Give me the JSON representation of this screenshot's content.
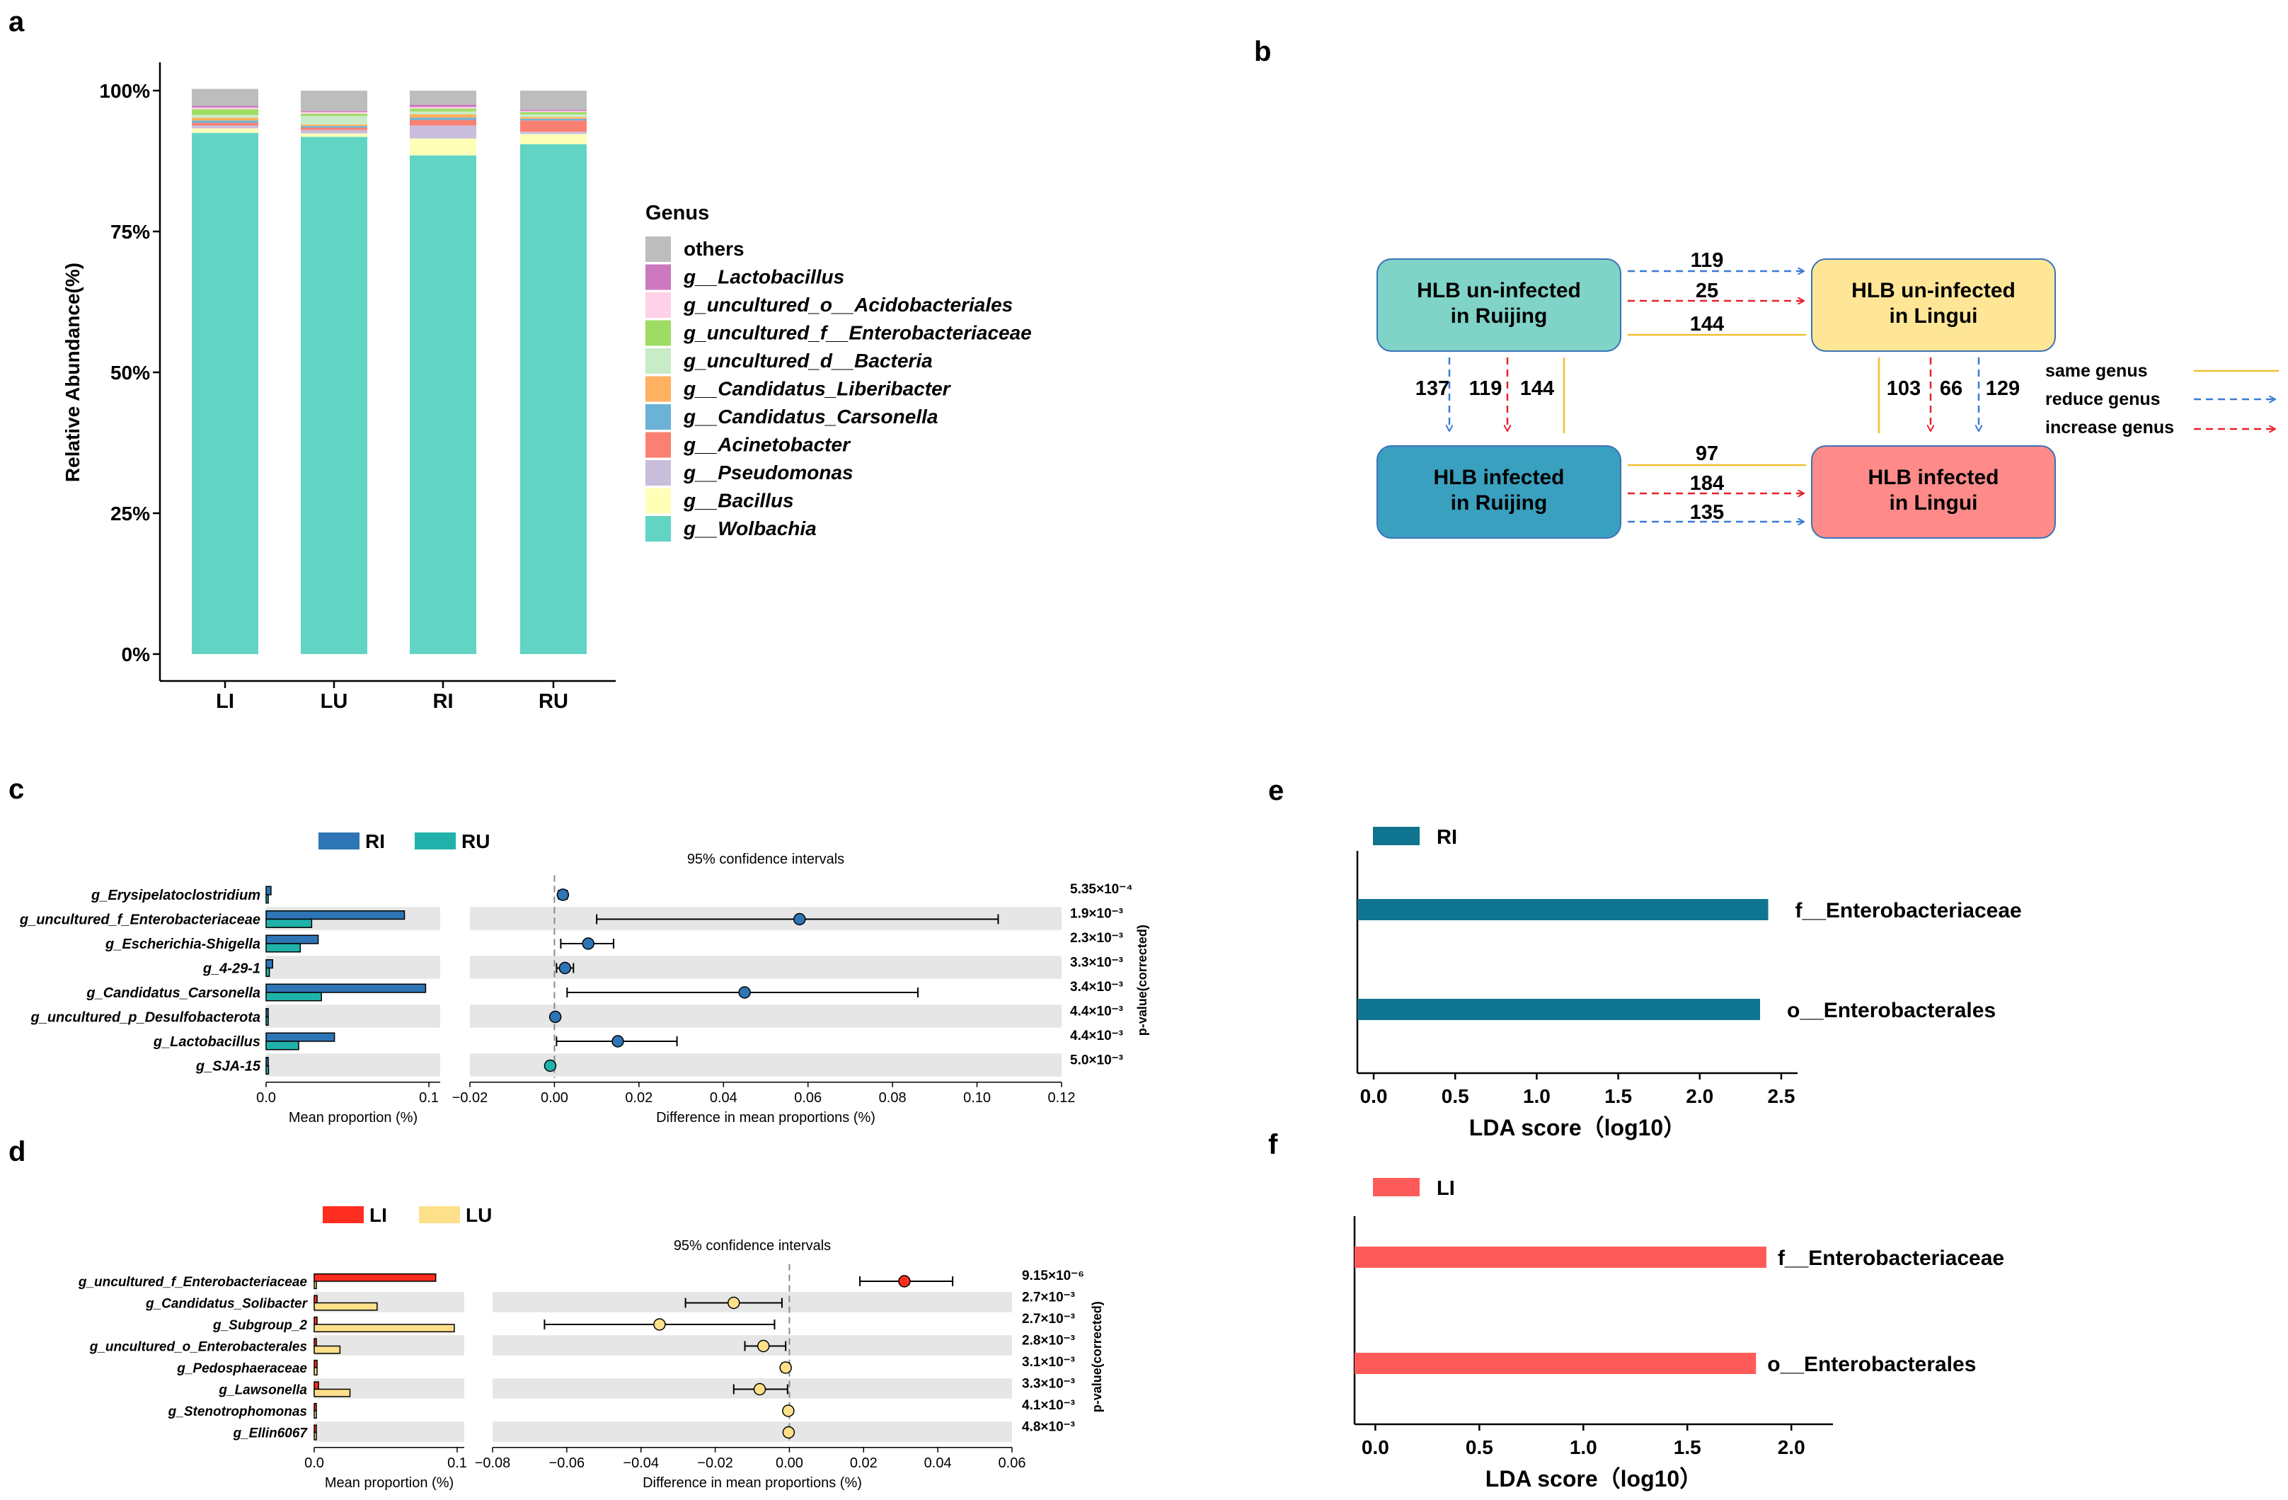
{
  "panel_labels": {
    "a": "a",
    "b": "b",
    "c": "c",
    "d": "d",
    "e": "e",
    "f": "f"
  },
  "colors": {
    "others": "#bdbdbd",
    "lactobacillus": "#cc79c0",
    "acido": "#ffd0e8",
    "entero": "#9edc64",
    "bacteria": "#c8ecc8",
    "liberibacter": "#ffb060",
    "carsonella": "#6bb2d6",
    "acinetobacter": "#fa8072",
    "pseudomonas": "#c8bedc",
    "bacillus": "#ffffb8",
    "wolbachia": "#61d4c4",
    "RI": "#2e75b6",
    "RU": "#20b2aa",
    "LI": "#ff2d20",
    "LU": "#ffe08a",
    "lda_RI": "#0e7490",
    "lda_LI": "#ff5a5a"
  },
  "chart_data": [
    {
      "id": "a",
      "type": "bar",
      "stacked": true,
      "categories": [
        "LI",
        "LU",
        "RI",
        "RU"
      ],
      "ylabel": "Relative Abundance(%)",
      "yticks": [
        "0%",
        "25%",
        "50%",
        "75%",
        "100%"
      ],
      "ylim": [
        0,
        100
      ],
      "legend_title": "Genus",
      "series": [
        {
          "name": "g__Wolbachia",
          "key": "wolbachia",
          "values": [
            92.5,
            91.8,
            88.5,
            90.5
          ]
        },
        {
          "name": "g__Bacillus",
          "key": "bacillus",
          "values": [
            0.8,
            0.6,
            3.0,
            1.8
          ]
        },
        {
          "name": "g__Pseudomonas",
          "key": "pseudomonas",
          "values": [
            0.5,
            0.6,
            2.3,
            0.4
          ]
        },
        {
          "name": "g__Acinetobacter",
          "key": "acinetobacter",
          "values": [
            0.5,
            0.4,
            1.0,
            2.0
          ]
        },
        {
          "name": "g__Candidatus_Carsonella",
          "key": "carsonella",
          "values": [
            0.4,
            0.3,
            0.4,
            0.3
          ]
        },
        {
          "name": "g__Candidatus_Liberibacter",
          "key": "liberibacter",
          "values": [
            0.5,
            0.3,
            0.6,
            0.3
          ]
        },
        {
          "name": "g_uncultured_d__Bacteria",
          "key": "bacteria",
          "values": [
            0.5,
            1.5,
            0.5,
            0.5
          ]
        },
        {
          "name": "g_uncultured_f__Enterobacteriaceae",
          "key": "entero",
          "values": [
            1.0,
            0.4,
            0.5,
            0.4
          ]
        },
        {
          "name": "g_uncultured_o__Acidobacteriales",
          "key": "acido",
          "values": [
            0.3,
            0.3,
            0.3,
            0.2
          ]
        },
        {
          "name": "g__Lactobacillus",
          "key": "lactobacillus",
          "values": [
            0.3,
            0.2,
            0.4,
            0.2
          ]
        },
        {
          "name": "others",
          "key": "others",
          "values": [
            3.0,
            3.6,
            2.5,
            3.4
          ]
        }
      ]
    },
    {
      "id": "c",
      "type": "scatter",
      "subtype": "extended_error_bar",
      "groups": [
        {
          "name": "RI",
          "key": "RI"
        },
        {
          "name": "RU",
          "key": "RU"
        }
      ],
      "features": [
        "g_Erysipelatoclostridium",
        "g_uncultured_f_Enterobacteriaceae",
        "g_Escherichia-Shigella",
        "g_4-29-1",
        "g_Candidatus_Carsonella",
        "g_uncultured_p_Desulfobacterota",
        "g_Lactobacillus",
        "g_SJA-15"
      ],
      "mean_a": [
        0.003,
        0.085,
        0.032,
        0.004,
        0.098,
        0.0004,
        0.042,
        0.0005
      ],
      "mean_b": [
        0.001,
        0.028,
        0.021,
        0.002,
        0.034,
        0.0001,
        0.02,
        0.0015
      ],
      "diff": [
        0.002,
        0.058,
        0.008,
        0.0025,
        0.045,
        0.0002,
        0.015,
        -0.001
      ],
      "ci_low": [
        0.001,
        0.01,
        0.0015,
        0.0005,
        0.003,
        0.0001,
        0.0005,
        -0.0015
      ],
      "ci_high": [
        0.003,
        0.105,
        0.014,
        0.0045,
        0.086,
        0.0003,
        0.029,
        -0.0005
      ],
      "pvalues": [
        "5.35×10⁻⁴",
        "1.9×10⁻³",
        "2.3×10⁻³",
        "3.3×10⁻³",
        "3.4×10⁻³",
        "4.4×10⁻³",
        "4.4×10⁻³",
        "5.0×10⁻³"
      ],
      "prop_ticks": [
        "0.0",
        "0.1"
      ],
      "prop_range": [
        0,
        0.1
      ],
      "diff_ticks": [
        "−0.02",
        "0.00",
        "0.02",
        "0.04",
        "0.06",
        "0.08",
        "0.10",
        "0.12"
      ],
      "diff_range": [
        -0.02,
        0.12
      ],
      "xlabel_left": "Mean proportion (%)",
      "xlabel_right": "Difference in mean proportions (%)",
      "ci_title": "95% confidence intervals",
      "pvalue_label": "p-value(corrected)"
    },
    {
      "id": "d",
      "type": "scatter",
      "subtype": "extended_error_bar",
      "groups": [
        {
          "name": "LI",
          "key": "LI"
        },
        {
          "name": "LU",
          "key": "LU"
        }
      ],
      "features": [
        "g_uncultured_f_Enterobacteriaceae",
        "g_Candidatus_Solibacter",
        "g_Subgroup_2",
        "g_uncultured_o_Enterobacterales",
        "g_Pedosphaeraceae",
        "g_Lawsonella",
        "g_Stenotrophomonas",
        "g_Ellin6067"
      ],
      "mean_a": [
        0.085,
        0.002,
        0.002,
        0.0015,
        0.002,
        0.003,
        0.001,
        0.001
      ],
      "mean_b": [
        0.0,
        0.044,
        0.098,
        0.018,
        0.002,
        0.025,
        0.001,
        0.0005
      ],
      "diff": [
        0.031,
        -0.015,
        -0.035,
        -0.007,
        -0.001,
        -0.008,
        -0.0003,
        -0.0002
      ],
      "ci_low": [
        0.019,
        -0.028,
        -0.066,
        -0.012,
        -0.002,
        -0.015,
        -0.0006,
        -0.0004
      ],
      "ci_high": [
        0.044,
        -0.002,
        -0.004,
        -0.001,
        0.0,
        -0.0005,
        0.0,
        0.0
      ],
      "pvalues": [
        "9.15×10⁻⁶",
        "2.7×10⁻³",
        "2.7×10⁻³",
        "2.8×10⁻³",
        "3.1×10⁻³",
        "3.3×10⁻³",
        "4.1×10⁻³",
        "4.8×10⁻³"
      ],
      "prop_ticks": [
        "0.0",
        "0.1"
      ],
      "prop_range": [
        0,
        0.1
      ],
      "diff_ticks": [
        "−0.08",
        "−0.06",
        "−0.04",
        "−0.02",
        "0.00",
        "0.02",
        "0.04",
        "0.06"
      ],
      "diff_range": [
        -0.08,
        0.06
      ],
      "xlabel_left": "Mean proportion (%)",
      "xlabel_right": "Difference in mean proportions (%)",
      "ci_title": "95% confidence intervals",
      "pvalue_label": "p-value(corrected)"
    },
    {
      "id": "e",
      "type": "bar",
      "orientation": "horizontal",
      "group": "RI",
      "color_key": "lda_RI",
      "categories": [
        "f__Enterobacteriaceae",
        "o__Enterobacterales"
      ],
      "values": [
        2.42,
        2.37
      ],
      "xticks": [
        "0.0",
        "0.5",
        "1.0",
        "1.5",
        "2.0",
        "2.5"
      ],
      "xlim": [
        -0.1,
        2.6
      ],
      "xlabel": "LDA score（log10）"
    },
    {
      "id": "f",
      "type": "bar",
      "orientation": "horizontal",
      "group": "LI",
      "color_key": "lda_LI",
      "categories": [
        "f__Enterobacteriaceae",
        "o__Enterobacterales"
      ],
      "values": [
        1.88,
        1.83
      ],
      "xticks": [
        "0.0",
        "0.5",
        "1.0",
        "1.5",
        "2.0"
      ],
      "xlim": [
        -0.1,
        2.2
      ],
      "xlabel": "LDA score（log10）"
    }
  ],
  "diagram_b": {
    "boxes": {
      "ru": "HLB un-infected\nin Ruijing",
      "lu": "HLB un-infected\nin Lingui",
      "ri": "HLB infected\nin Ruijing",
      "li": "HLB infected\nin Lingui"
    },
    "top_counts": {
      "reduce": "119",
      "increase": "25",
      "same": "144"
    },
    "bottom_counts": {
      "same": "97",
      "increase": "184",
      "reduce": "135"
    },
    "left_counts": {
      "reduce": "137",
      "increase": "119",
      "same": "144"
    },
    "right_counts": {
      "same": "103",
      "increase": "66",
      "reduce": "129"
    },
    "legend": {
      "same": "same genus",
      "reduce": "reduce genus",
      "increase": "increase genus"
    }
  }
}
